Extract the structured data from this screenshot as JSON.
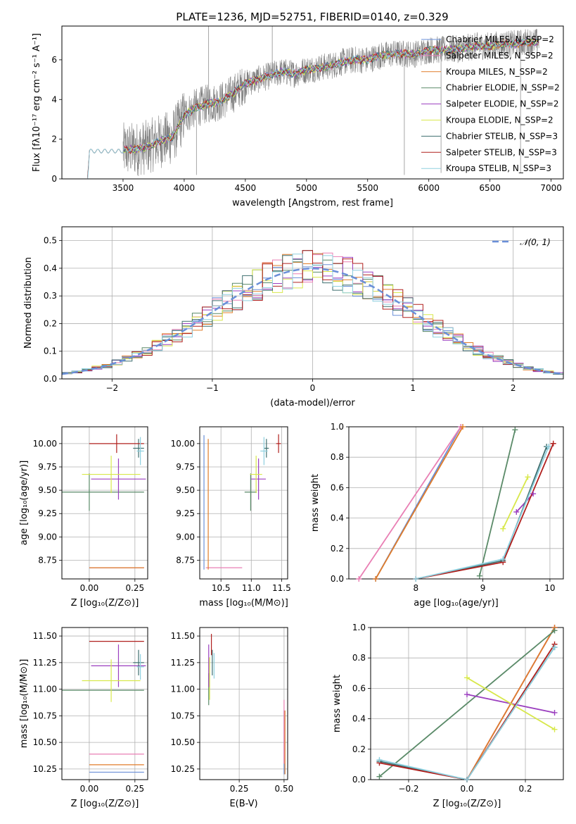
{
  "colors": {
    "Chabrier MILES": "#6a8fd8",
    "Salpeter MILES": "#e97fb4",
    "Kroupa MILES": "#e07c2a",
    "Chabrier ELODIE": "#5a8a68",
    "Salpeter ELODIE": "#9b3fbf",
    "Kroupa ELODIE": "#d8e84c",
    "Chabrier STELIB": "#3f6f6f",
    "Salpeter STELIB": "#b0201e",
    "Kroupa STELIB": "#8fd0df",
    "observed": "#808080",
    "normal": "#6a8fd8"
  },
  "chart_data": [
    {
      "id": "spectrum",
      "type": "line",
      "title": "PLATE=1236, MJD=52751, FIBERID=0140, z=0.329",
      "xlabel": "wavelength [Angstrom, rest frame]",
      "ylabel": "Flux [fλ10⁻¹⁷ erg cm⁻² s⁻¹ A⁻¹]",
      "xlim": [
        3000,
        7100
      ],
      "ylim": [
        0,
        7.7
      ],
      "xticks": [
        "3500",
        "4000",
        "4500",
        "5000",
        "5500",
        "6000",
        "6500",
        "7000"
      ],
      "yticks": [
        "0",
        "2",
        "4",
        "6"
      ],
      "grid": false,
      "legend_position": "top-right",
      "legend": [
        "Chabrier MILES, N_SSP=2",
        "Salpeter MILES, N_SSP=2",
        "Kroupa MILES, N_SSP=2",
        "Chabrier ELODIE, N_SSP=2",
        "Salpeter ELODIE, N_SSP=2",
        "Kroupa ELODIE, N_SSP=2",
        "Chabrier STELIB, N_SSP=3",
        "Salpeter STELIB, N_SSP=3",
        "Kroupa STELIB, N_SSP=3"
      ],
      "legend_models": [
        "Chabrier MILES",
        "Salpeter MILES",
        "Kroupa MILES",
        "Chabrier ELODIE",
        "Salpeter ELODIE",
        "Kroupa ELODIE",
        "Chabrier STELIB",
        "Salpeter STELIB",
        "Kroupa STELIB"
      ],
      "continuum": [
        [
          3210,
          0.0
        ],
        [
          3225,
          1.2
        ],
        [
          3300,
          1.45
        ],
        [
          3400,
          1.5
        ],
        [
          3500,
          1.45
        ],
        [
          3600,
          1.5
        ],
        [
          3700,
          1.6
        ],
        [
          3800,
          1.9
        ],
        [
          3900,
          2.1
        ],
        [
          3950,
          2.6
        ],
        [
          4000,
          3.2
        ],
        [
          4100,
          3.6
        ],
        [
          4200,
          3.8
        ],
        [
          4300,
          3.9
        ],
        [
          4400,
          4.3
        ],
        [
          4500,
          4.8
        ],
        [
          4600,
          5.0
        ],
        [
          4700,
          5.2
        ],
        [
          4800,
          5.4
        ],
        [
          4900,
          5.3
        ],
        [
          5000,
          5.5
        ],
        [
          5100,
          5.6
        ],
        [
          5200,
          5.7
        ],
        [
          5300,
          5.9
        ],
        [
          5400,
          6.0
        ],
        [
          5500,
          6.0
        ],
        [
          5600,
          6.2
        ],
        [
          5700,
          6.3
        ],
        [
          5800,
          6.3
        ],
        [
          5900,
          6.3
        ],
        [
          6000,
          6.5
        ],
        [
          6100,
          6.5
        ],
        [
          6200,
          6.5
        ],
        [
          6300,
          6.6
        ],
        [
          6400,
          6.7
        ],
        [
          6500,
          6.7
        ],
        [
          6600,
          6.8
        ],
        [
          6700,
          6.8
        ],
        [
          6800,
          6.9
        ],
        [
          6900,
          6.9
        ]
      ],
      "observed_range": [
        3500,
        6900
      ],
      "observed_lines": [
        [
          4200,
          7.7
        ],
        [
          4720,
          7.7
        ],
        [
          4100,
          0.2
        ],
        [
          5800,
          0.2
        ],
        [
          6100,
          0.3
        ],
        [
          6750,
          0.3
        ]
      ]
    },
    {
      "id": "residuals",
      "type": "step",
      "xlabel": "(data-model)/error",
      "ylabel": "Normed distribution",
      "xlim": [
        -2.5,
        2.5
      ],
      "ylim": [
        0,
        0.55
      ],
      "xticks": [
        "−2",
        "−1",
        "0",
        "1",
        "2"
      ],
      "yticks": [
        "0.0",
        "0.1",
        "0.2",
        "0.3",
        "0.4",
        "0.5"
      ],
      "grid": true,
      "legend_position": "top-right",
      "legend": [
        "𝒩(0, 1)"
      ],
      "bin_width": 0.1
    },
    {
      "id": "age-vs-Z",
      "type": "errorbar",
      "xlabel": "Z [log₁₀(Z/Z⊙)]",
      "ylabel": "age  [log₁₀(age/yr)]",
      "xlim": [
        -0.15,
        0.32
      ],
      "ylim": [
        8.55,
        10.18
      ],
      "xticks": [
        "0.00",
        "0.25"
      ],
      "yticks": [
        "8.75",
        "9.00",
        "9.25",
        "9.50",
        "9.75",
        "10.00"
      ],
      "grid": true,
      "points": [
        {
          "model": "Chabrier MILES",
          "x": 0.15,
          "xerr": 0.15,
          "y": 8.67,
          "yerr": 0.0
        },
        {
          "model": "Salpeter MILES",
          "x": 0.15,
          "xerr": 0.15,
          "y": 8.67,
          "yerr": 0.0
        },
        {
          "model": "Kroupa MILES",
          "x": 0.15,
          "xerr": 0.15,
          "y": 8.67,
          "yerr": 0.0
        },
        {
          "model": "Chabrier ELODIE",
          "x": 0.0,
          "xerr": 0.3,
          "y": 9.48,
          "yerr": 0.2
        },
        {
          "model": "Salpeter ELODIE",
          "x": 0.16,
          "xerr": 0.15,
          "y": 9.62,
          "yerr": 0.22
        },
        {
          "model": "Kroupa ELODIE",
          "x": 0.12,
          "xerr": 0.16,
          "y": 9.67,
          "yerr": 0.2
        },
        {
          "model": "Chabrier STELIB",
          "x": 0.27,
          "xerr": 0.03,
          "y": 9.95,
          "yerr": 0.1
        },
        {
          "model": "Salpeter STELIB",
          "x": 0.15,
          "xerr": 0.15,
          "y": 10.0,
          "yerr": 0.1
        },
        {
          "model": "Kroupa STELIB",
          "x": 0.28,
          "xerr": 0.02,
          "y": 9.92,
          "yerr": 0.15
        }
      ]
    },
    {
      "id": "age-vs-mass",
      "type": "errorbar",
      "xlabel": "mass [log₁₀(M/M⊙)]",
      "ylabel": "",
      "xlim": [
        10.15,
        11.6
      ],
      "ylim": [
        8.55,
        10.18
      ],
      "xticks": [
        "10.5",
        "11.0",
        "11.5"
      ],
      "yticks": [
        "8.75",
        "9.00",
        "9.25",
        "9.50",
        "9.75",
        "10.00"
      ],
      "grid": true,
      "points": [
        {
          "model": "Chabrier MILES",
          "x": 10.22,
          "xerr": 0.0,
          "y": 9.37,
          "yerr": 0.72
        },
        {
          "model": "Salpeter MILES",
          "x": 10.55,
          "xerr": 0.3,
          "y": 8.67,
          "yerr": 0.0
        },
        {
          "model": "Kroupa MILES",
          "x": 10.29,
          "xerr": 0.0,
          "y": 9.35,
          "yerr": 0.7
        },
        {
          "model": "Chabrier ELODIE",
          "x": 10.99,
          "xerr": 0.1,
          "y": 9.48,
          "yerr": 0.2
        },
        {
          "model": "Salpeter ELODIE",
          "x": 11.12,
          "xerr": 0.12,
          "y": 9.62,
          "yerr": 0.22
        },
        {
          "model": "Kroupa ELODIE",
          "x": 11.08,
          "xerr": 0.1,
          "y": 9.67,
          "yerr": 0.2
        },
        {
          "model": "Chabrier STELIB",
          "x": 11.25,
          "xerr": 0.04,
          "y": 9.95,
          "yerr": 0.1
        },
        {
          "model": "Salpeter STELIB",
          "x": 11.45,
          "xerr": 0.04,
          "y": 10.0,
          "yerr": 0.1
        },
        {
          "model": "Kroupa STELIB",
          "x": 11.21,
          "xerr": 0.06,
          "y": 9.92,
          "yerr": 0.15
        }
      ]
    },
    {
      "id": "weight-vs-age",
      "type": "line",
      "xlabel": "age  [log₁₀(age/yr)]",
      "ylabel": "mass weight",
      "xlim": [
        7.0,
        10.2
      ],
      "ylim": [
        0,
        1.0
      ],
      "xticks": [
        "8",
        "9",
        "10"
      ],
      "yticks": [
        "0.0",
        "0.2",
        "0.4",
        "0.6",
        "0.8",
        "1.0"
      ],
      "grid": true,
      "series": [
        {
          "model": "Chabrier MILES",
          "x": [
            7.4,
            8.67
          ],
          "y": [
            0.0,
            1.0
          ]
        },
        {
          "model": "Salpeter MILES",
          "x": [
            7.15,
            8.67
          ],
          "y": [
            0.0,
            1.0
          ]
        },
        {
          "model": "Kroupa MILES",
          "x": [
            7.4,
            8.7
          ],
          "y": [
            0.0,
            1.0
          ]
        },
        {
          "model": "Chabrier ELODIE",
          "x": [
            8.95,
            9.48
          ],
          "y": [
            0.02,
            0.98
          ]
        },
        {
          "model": "Salpeter ELODIE",
          "x": [
            9.5,
            9.75
          ],
          "y": [
            0.44,
            0.56
          ]
        },
        {
          "model": "Kroupa ELODIE",
          "x": [
            9.3,
            9.67
          ],
          "y": [
            0.33,
            0.67
          ]
        },
        {
          "model": "Chabrier STELIB",
          "x": [
            8.0,
            9.3,
            9.95
          ],
          "y": [
            0.0,
            0.12,
            0.87
          ]
        },
        {
          "model": "Salpeter STELIB",
          "x": [
            8.0,
            9.3,
            10.05
          ],
          "y": [
            0.0,
            0.11,
            0.89
          ]
        },
        {
          "model": "Kroupa STELIB",
          "x": [
            8.0,
            9.3,
            9.98
          ],
          "y": [
            0.0,
            0.13,
            0.87
          ]
        }
      ]
    },
    {
      "id": "mass-vs-Z",
      "type": "errorbar",
      "xlabel": "Z [log₁₀(Z/Z⊙)]",
      "ylabel": "mass [log₁₀(M/M⊙)]",
      "xlim": [
        -0.15,
        0.32
      ],
      "ylim": [
        10.15,
        11.58
      ],
      "xticks": [
        "0.00",
        "0.25"
      ],
      "yticks": [
        "10.25",
        "10.50",
        "10.75",
        "11.00",
        "11.25",
        "11.50"
      ],
      "grid": true,
      "points": [
        {
          "model": "Chabrier MILES",
          "x": 0.15,
          "xerr": 0.15,
          "y": 10.22,
          "yerr": 0.0
        },
        {
          "model": "Salpeter MILES",
          "x": 0.15,
          "xerr": 0.15,
          "y": 10.39,
          "yerr": 0.0
        },
        {
          "model": "Kroupa MILES",
          "x": 0.15,
          "xerr": 0.15,
          "y": 10.29,
          "yerr": 0.0
        },
        {
          "model": "Chabrier ELODIE",
          "x": 0.0,
          "xerr": 0.3,
          "y": 10.99,
          "yerr": 0.0
        },
        {
          "model": "Salpeter ELODIE",
          "x": 0.16,
          "xerr": 0.15,
          "y": 11.22,
          "yerr": 0.2
        },
        {
          "model": "Kroupa ELODIE",
          "x": 0.12,
          "xerr": 0.16,
          "y": 11.08,
          "yerr": 0.2
        },
        {
          "model": "Chabrier STELIB",
          "x": 0.27,
          "xerr": 0.03,
          "y": 11.25,
          "yerr": 0.12
        },
        {
          "model": "Salpeter STELIB",
          "x": 0.15,
          "xerr": 0.15,
          "y": 11.45,
          "yerr": 0.0
        },
        {
          "model": "Kroupa STELIB",
          "x": 0.28,
          "xerr": 0.02,
          "y": 11.21,
          "yerr": 0.12
        }
      ]
    },
    {
      "id": "mass-vs-EBV",
      "type": "errorbar",
      "xlabel": "E(B-V)",
      "ylabel": "",
      "xlim": [
        0.03,
        0.52
      ],
      "ylim": [
        10.15,
        11.58
      ],
      "xticks": [
        "0.25",
        "0.50"
      ],
      "yticks": [
        "10.25",
        "10.50",
        "10.75",
        "11.00",
        "11.25",
        "11.50"
      ],
      "grid": true,
      "points": [
        {
          "model": "Chabrier MILES",
          "x": 0.5,
          "xerr": 0.0,
          "y": 10.5,
          "yerr": 0.3
        },
        {
          "model": "Salpeter MILES",
          "x": 0.5,
          "xerr": 0.0,
          "y": 10.6,
          "yerr": 0.3
        },
        {
          "model": "Kroupa MILES",
          "x": 0.505,
          "xerr": 0.0,
          "y": 10.5,
          "yerr": 0.3
        },
        {
          "model": "Chabrier ELODIE",
          "x": 0.08,
          "xerr": 0.0,
          "y": 11.0,
          "yerr": 0.15
        },
        {
          "model": "Salpeter ELODIE",
          "x": 0.08,
          "xerr": 0.0,
          "y": 11.22,
          "yerr": 0.2
        },
        {
          "model": "Kroupa ELODIE",
          "x": 0.085,
          "xerr": 0.0,
          "y": 11.1,
          "yerr": 0.2
        },
        {
          "model": "Chabrier STELIB",
          "x": 0.1,
          "xerr": 0.0,
          "y": 11.25,
          "yerr": 0.12
        },
        {
          "model": "Salpeter STELIB",
          "x": 0.095,
          "xerr": 0.0,
          "y": 11.42,
          "yerr": 0.1
        },
        {
          "model": "Kroupa STELIB",
          "x": 0.11,
          "xerr": 0.0,
          "y": 11.22,
          "yerr": 0.12
        }
      ]
    },
    {
      "id": "weight-vs-Z",
      "type": "line",
      "xlabel": "Z [log₁₀(Z/Z⊙)]",
      "ylabel": "mass weight",
      "xlim": [
        -0.33,
        0.33
      ],
      "ylim": [
        0,
        1.0
      ],
      "xticks": [
        "−0.2",
        "0.0",
        "0.2"
      ],
      "yticks": [
        "0.0",
        "0.2",
        "0.4",
        "0.6",
        "0.8",
        "1.0"
      ],
      "grid": true,
      "series": [
        {
          "model": "Chabrier MILES",
          "x": [
            0.0,
            0.3
          ],
          "y": [
            0.0,
            1.0
          ]
        },
        {
          "model": "Salpeter MILES",
          "x": [
            0.0,
            0.3
          ],
          "y": [
            0.0,
            1.0
          ]
        },
        {
          "model": "Kroupa MILES",
          "x": [
            0.0,
            0.3
          ],
          "y": [
            0.0,
            1.0
          ]
        },
        {
          "model": "Chabrier ELODIE",
          "x": [
            -0.3,
            0.3
          ],
          "y": [
            0.02,
            0.98
          ]
        },
        {
          "model": "Salpeter ELODIE",
          "x": [
            0.0,
            0.3
          ],
          "y": [
            0.56,
            0.44
          ]
        },
        {
          "model": "Kroupa ELODIE",
          "x": [
            0.0,
            0.3
          ],
          "y": [
            0.67,
            0.33
          ]
        },
        {
          "model": "Chabrier STELIB",
          "x": [
            -0.3,
            0.0,
            0.3
          ],
          "y": [
            0.12,
            0.0,
            0.87
          ]
        },
        {
          "model": "Salpeter STELIB",
          "x": [
            -0.3,
            0.0,
            0.3
          ],
          "y": [
            0.11,
            0.0,
            0.89
          ]
        },
        {
          "model": "Kroupa STELIB",
          "x": [
            -0.3,
            0.0,
            0.3
          ],
          "y": [
            0.13,
            0.0,
            0.87
          ]
        }
      ]
    }
  ]
}
